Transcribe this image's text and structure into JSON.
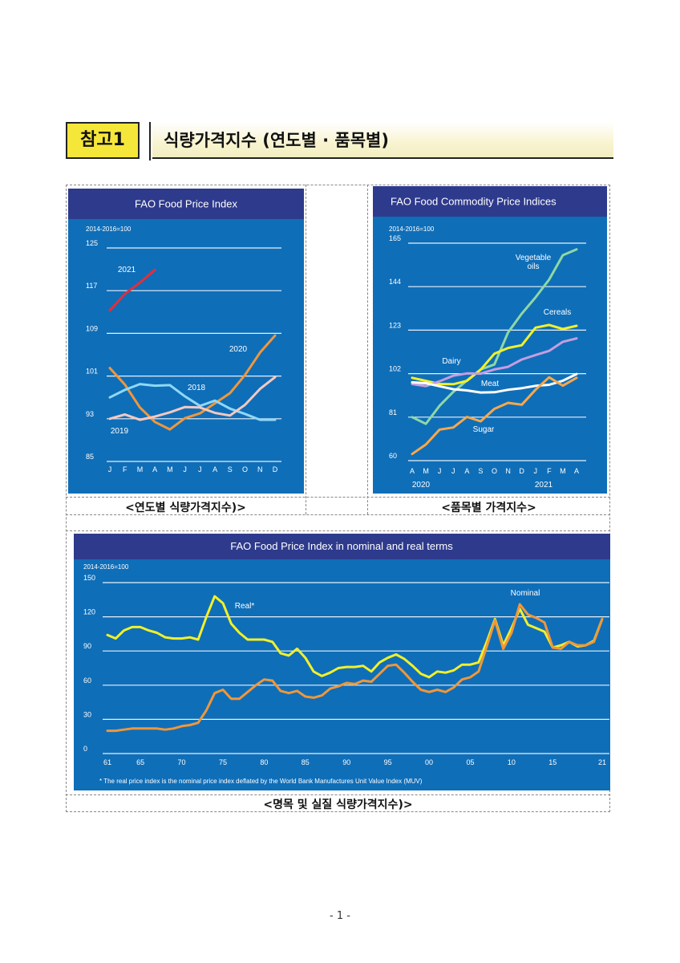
{
  "header": {
    "box_label": "참고1",
    "title": "식량가격지수 (연도별 · 품목별)"
  },
  "captions": {
    "chart1": "<연도별 식량가격지수)>",
    "chart2": "<품목별 가격지수>",
    "chart3": "<명목 및 실질 식량가격지수)>"
  },
  "footer": {
    "page": "- 1 -"
  },
  "colors": {
    "panel": "#0f6eb8",
    "title_band": "#2e3a8c",
    "orange": "#f0973a",
    "yellow": "#f2f02a",
    "red": "#e0303c",
    "lightblue": "#8fd8f6",
    "pink": "#f5c8c0",
    "green": "#8ed8a4",
    "purple": "#c49ee0",
    "sugar": "#f7a84c"
  },
  "chart_data": [
    {
      "type": "line",
      "title": "FAO Food Price Index",
      "subtitle": "2014-2016=100",
      "categories": [
        "J",
        "F",
        "M",
        "A",
        "M",
        "J",
        "J",
        "A",
        "S",
        "O",
        "N",
        "D"
      ],
      "ylim": [
        85,
        125
      ],
      "yticks": [
        85,
        93,
        101,
        109,
        117,
        125
      ],
      "series": [
        {
          "name": "2021",
          "color": "#e0303c",
          "values": [
            113.3,
            116.4,
            118.5,
            120.9,
            null,
            null,
            null,
            null,
            null,
            null,
            null,
            null
          ]
        },
        {
          "name": "2020",
          "color": "#f0973a",
          "values": [
            102.5,
            99.4,
            95.1,
            92.4,
            91.0,
            93.1,
            94.0,
            95.9,
            97.8,
            101.2,
            105.4,
            108.6
          ]
        },
        {
          "name": "2018",
          "color": "#8fd8f6",
          "values": [
            97.0,
            98.4,
            99.5,
            99.2,
            99.3,
            97.2,
            95.4,
            96.4,
            94.9,
            93.9,
            92.8,
            92.8
          ]
        },
        {
          "name": "2019",
          "color": "#f5c8c0",
          "values": [
            93.0,
            93.8,
            92.8,
            93.4,
            94.2,
            95.2,
            95.1,
            94.1,
            93.6,
            95.6,
            98.6,
            100.8
          ]
        }
      ]
    },
    {
      "type": "line",
      "title": "FAO Food Commodity Price Indices",
      "subtitle": "2014-2016=100",
      "categories": [
        "A",
        "M",
        "J",
        "J",
        "A",
        "S",
        "O",
        "N",
        "D",
        "J",
        "F",
        "M",
        "A"
      ],
      "year_labels": [
        "2020",
        "2021"
      ],
      "ylim": [
        60,
        165
      ],
      "yticks": [
        60,
        81,
        102,
        123,
        144,
        165
      ],
      "series": [
        {
          "name": "Vegetable oils",
          "color": "#8ed8a4",
          "values": [
            81.0,
            77.8,
            86.5,
            93.2,
            98.7,
            104.0,
            106.4,
            121.9,
            131.0,
            138.8,
            147.4,
            159.2,
            162.0
          ]
        },
        {
          "name": "Cereals",
          "color": "#f2f02a",
          "values": [
            100.0,
            98.5,
            97.0,
            96.9,
            98.5,
            103.9,
            111.6,
            114.4,
            115.7,
            124.2,
            125.5,
            123.6,
            125.1
          ]
        },
        {
          "name": "Dairy",
          "color": "#c49ee0",
          "values": [
            97.0,
            96.0,
            98.3,
            101.0,
            102.1,
            102.0,
            104.0,
            105.3,
            108.8,
            111.0,
            113.0,
            117.4,
            119.0
          ]
        },
        {
          "name": "Meat",
          "color": "#ffffff",
          "values": [
            97.8,
            97.4,
            95.9,
            94.5,
            93.9,
            92.9,
            93.0,
            94.2,
            95.0,
            96.1,
            96.6,
            98.6,
            101.8
          ]
        },
        {
          "name": "Sugar",
          "color": "#f7a84c",
          "values": [
            63.2,
            67.8,
            75.0,
            76.0,
            81.1,
            79.0,
            85.0,
            87.9,
            87.0,
            94.2,
            100.2,
            96.2,
            100.0
          ]
        }
      ]
    },
    {
      "type": "line",
      "title": "FAO Food Price Index in nominal and real terms",
      "subtitle": "2014-2016=100",
      "x": [
        1961,
        1962,
        1963,
        1964,
        1965,
        1966,
        1967,
        1968,
        1969,
        1970,
        1971,
        1972,
        1973,
        1974,
        1975,
        1976,
        1977,
        1978,
        1979,
        1980,
        1981,
        1982,
        1983,
        1984,
        1985,
        1986,
        1987,
        1988,
        1989,
        1990,
        1991,
        1992,
        1993,
        1994,
        1995,
        1996,
        1997,
        1998,
        1999,
        2000,
        2001,
        2002,
        2003,
        2004,
        2005,
        2006,
        2007,
        2008,
        2009,
        2010,
        2011,
        2012,
        2013,
        2014,
        2015,
        2016,
        2017,
        2018,
        2019,
        2020,
        2021
      ],
      "xticks": [
        1961,
        1965,
        1970,
        1975,
        1980,
        1985,
        1990,
        1995,
        2000,
        2005,
        2010,
        2015,
        2021
      ],
      "xticklabels": [
        "61",
        "65",
        "70",
        "75",
        "80",
        "85",
        "90",
        "95",
        "00",
        "05",
        "10",
        "15",
        "21"
      ],
      "ylim": [
        0,
        150
      ],
      "yticks": [
        0,
        30,
        60,
        90,
        120,
        150
      ],
      "footnote": "* The real price index is the nominal price index deflated by the World Bank Manufactures Unit Value Index (MUV)",
      "series": [
        {
          "name": "Real*",
          "color": "#f2f02a",
          "values": [
            104,
            101,
            108,
            111,
            111,
            108,
            106,
            102,
            101,
            101,
            102,
            100,
            120,
            138,
            132,
            114,
            106,
            100,
            100,
            100,
            98,
            88,
            86,
            92,
            84,
            72,
            68,
            71,
            75,
            76,
            76,
            77,
            72,
            80,
            84,
            87,
            83,
            77,
            70,
            67,
            72,
            71,
            73,
            78,
            78,
            80,
            98,
            118,
            95,
            110,
            127,
            113,
            110,
            107,
            93,
            95,
            98,
            94,
            95,
            99,
            118
          ]
        },
        {
          "name": "Nominal",
          "color": "#f0973a",
          "values": [
            20,
            20,
            21,
            22,
            22,
            22,
            22,
            21,
            22,
            24,
            25,
            27,
            38,
            53,
            56,
            48,
            48,
            54,
            60,
            65,
            64,
            55,
            53,
            55,
            50,
            49,
            51,
            57,
            59,
            62,
            61,
            64,
            63,
            70,
            77,
            78,
            71,
            63,
            56,
            54,
            56,
            54,
            58,
            65,
            67,
            72,
            94,
            117,
            92,
            106,
            131,
            122,
            119,
            115,
            93,
            92,
            98,
            95,
            95,
            98,
            118
          ]
        }
      ]
    }
  ]
}
